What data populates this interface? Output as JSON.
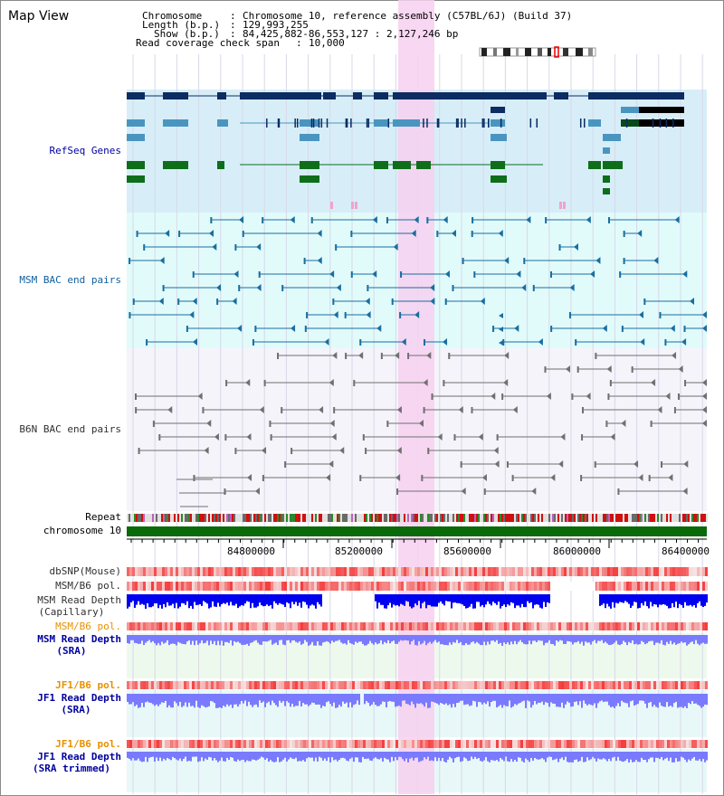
{
  "page": {
    "title": "Map View"
  },
  "header": {
    "chromosome_label": "Chromosome",
    "chromosome_value": "Chromosome 10, reference assembly (C57BL/6J) (Build 37)",
    "length_label": "Length (b.p.)",
    "length_value": "129,993,255",
    "show_label": "Show (b.p.)",
    "show_value": "84,425,882-86,553,127 : 2,127,246 bp",
    "coverage_label": "Read coverage check span",
    "coverage_value": "10,000"
  },
  "tracks": {
    "refseq": "RefSeq Genes",
    "msm_bac": "MSM BAC end pairs",
    "b6n_bac": "B6N BAC end pairs",
    "repeat": "Repeat",
    "chromosome": "chromosome 10",
    "dbsnp": "dbSNP(Mouse)",
    "msm_b6_pol_1": "MSM/B6 pol.",
    "msm_read_depth_cap_1": "MSM Read Depth",
    "msm_read_depth_cap_2": "(Capillary)",
    "msm_b6_pol_2": "MSM/B6 pol.",
    "msm_read_depth_sra_1": "MSM Read Depth",
    "msm_read_depth_sra_2": "(SRA)",
    "jf1_b6_pol_1": "JF1/B6 pol.",
    "jf1_read_depth_sra_1": "JF1 Read Depth",
    "jf1_read_depth_sra_2": "(SRA)",
    "jf1_b6_pol_2": "JF1/B6 pol.",
    "jf1_read_depth_trim_1": "JF1 Read Depth",
    "jf1_read_depth_trim_2": "(SRA trimmed)"
  },
  "axis": {
    "ticks": [
      "84800000",
      "85200000",
      "85600000",
      "86000000",
      "86400000"
    ]
  },
  "colors": {
    "refseq_bg": "#d7eef8",
    "msm_bg": "#e1fbfb",
    "b6n_bg": "#f4f4fa",
    "highlight": "#f7d0f0",
    "gene_dark": "#0c2c62",
    "gene_mid": "#4a95c0",
    "gene_green": "#0e6e1a",
    "chromosome_bar": "#0a6a0a",
    "msm_line": "#1a6ea0",
    "b6n_line": "#707070",
    "label_blue": "#0000a0",
    "label_orange": "#e89000",
    "label_dark": "#303030",
    "depth_blue": "#0000f0",
    "depth_light": "#7a7aff"
  }
}
